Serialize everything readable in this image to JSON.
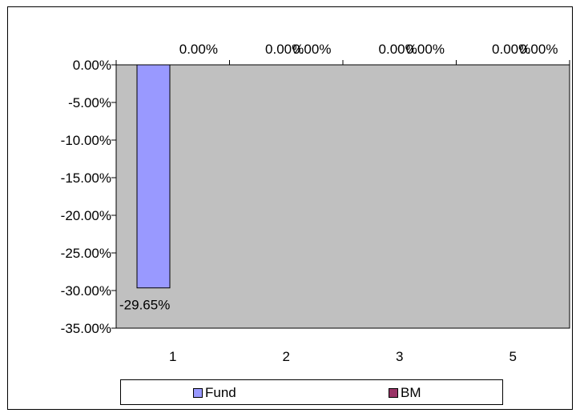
{
  "chart_data": {
    "type": "bar",
    "categories": [
      "1",
      "2",
      "3",
      "5"
    ],
    "series": [
      {
        "name": "Fund",
        "values": [
          -29.65,
          0,
          0,
          0
        ],
        "labels": [
          "-29.65%",
          "0.00%",
          "0.00%",
          "0.00%"
        ]
      },
      {
        "name": "BM",
        "values": [
          0,
          0,
          0,
          0
        ],
        "labels": [
          "0.00%",
          "0.00%",
          "0.00%",
          "0.00%"
        ]
      }
    ],
    "ylim": [
      -35,
      0
    ],
    "yticks": [
      0,
      -5,
      -10,
      -15,
      -20,
      -25,
      -30,
      -35
    ],
    "ytick_labels": [
      "0.00%",
      "-5.00%",
      "-10.00%",
      "-15.00%",
      "-20.00%",
      "-25.00%",
      "-30.00%",
      "-35.00%"
    ],
    "grid": false,
    "legend_position": "bottom",
    "colors": {
      "Fund": "#9999ff",
      "BM": "#993366",
      "plot_background": "#c0c0c0"
    }
  }
}
